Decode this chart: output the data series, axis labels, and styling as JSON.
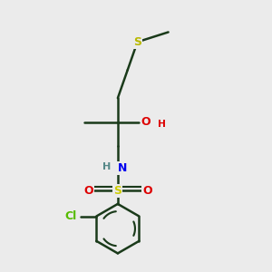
{
  "background_color": "#ebebeb",
  "bond_color": "#1a3a1a",
  "bond_width": 1.8,
  "atom_colors": {
    "S_thioether": "#b8b800",
    "S_sulfone": "#cccc00",
    "O": "#dd0000",
    "N": "#0000ee",
    "Cl": "#55bb00",
    "H_on_O": "#dd0000",
    "H_on_N": "#558888"
  },
  "font_size": 9,
  "figsize": [
    3.0,
    3.0
  ],
  "dpi": 100,
  "xlim": [
    2.5,
    8.5
  ],
  "ylim": [
    0.2,
    9.8
  ]
}
